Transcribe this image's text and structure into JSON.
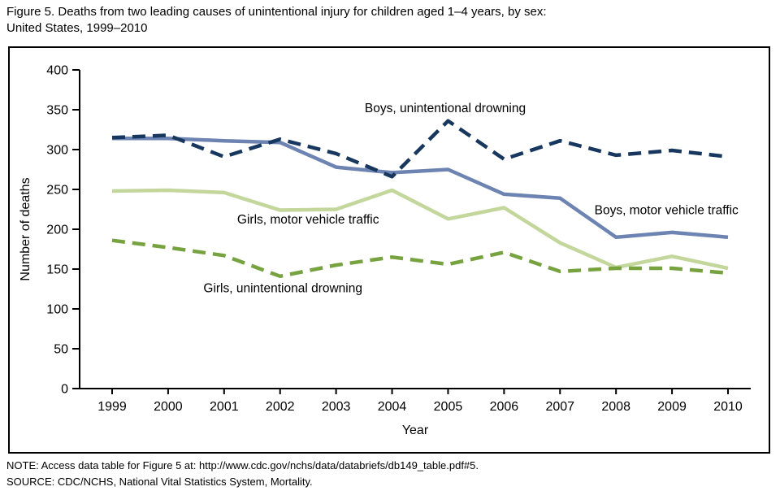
{
  "figure": {
    "title_line1": "Figure 5. Deaths from two leading causes of unintentional injury for children aged 1–4 years, by sex:",
    "title_line2": "United States, 1999–2010",
    "note": "NOTE: Access data table for Figure 5 at: http://www.cdc.gov/nchs/data/databriefs/db149_table.pdf#5.",
    "source": "SOURCE: CDC/NCHS, National Vital Statistics System, Mortality."
  },
  "chart_data": {
    "type": "line",
    "title": "Figure 5. Deaths from two leading causes of unintentional injury for children aged 1–4 years, by sex: United States, 1999–2010",
    "xlabel": "Year",
    "ylabel": "Number of deaths",
    "x": [
      1999,
      2000,
      2001,
      2002,
      2003,
      2004,
      2005,
      2006,
      2007,
      2008,
      2009,
      2010
    ],
    "ylim": [
      0,
      400
    ],
    "ytick_step": 50,
    "grid": false,
    "legend": "inline-annotations",
    "series": [
      {
        "name": "Girls, motor vehicle traffic",
        "style": "solid",
        "color": "#c3d69b",
        "values": [
          248,
          249,
          246,
          224,
          225,
          249,
          213,
          227,
          183,
          152,
          166,
          151
        ]
      },
      {
        "name": "Boys, motor vehicle traffic",
        "style": "solid",
        "color": "#6d83b2",
        "values": [
          314,
          314,
          311,
          309,
          278,
          271,
          275,
          244,
          239,
          190,
          196,
          190
        ]
      },
      {
        "name": "Girls, unintentional drowning",
        "style": "dashed",
        "color": "#76a23f",
        "values": [
          186,
          177,
          167,
          141,
          155,
          165,
          156,
          171,
          147,
          151,
          151,
          145
        ]
      },
      {
        "name": "Boys, unintentional drowning",
        "style": "dashed",
        "color": "#17375e",
        "values": [
          315,
          318,
          291,
          313,
          295,
          266,
          336,
          288,
          311,
          293,
          299,
          291
        ]
      }
    ],
    "annotations": [
      {
        "text": "Boys, unintentional drowning",
        "year": 2004.95,
        "value": 352
      },
      {
        "text": "Boys, motor vehicle traffic",
        "year": 2008.9,
        "value": 224
      },
      {
        "text": "Girls, motor vehicle traffic",
        "year": 2002.5,
        "value": 212
      },
      {
        "text": "Girls, unintentional drowning",
        "year": 2002.05,
        "value": 126
      }
    ]
  }
}
